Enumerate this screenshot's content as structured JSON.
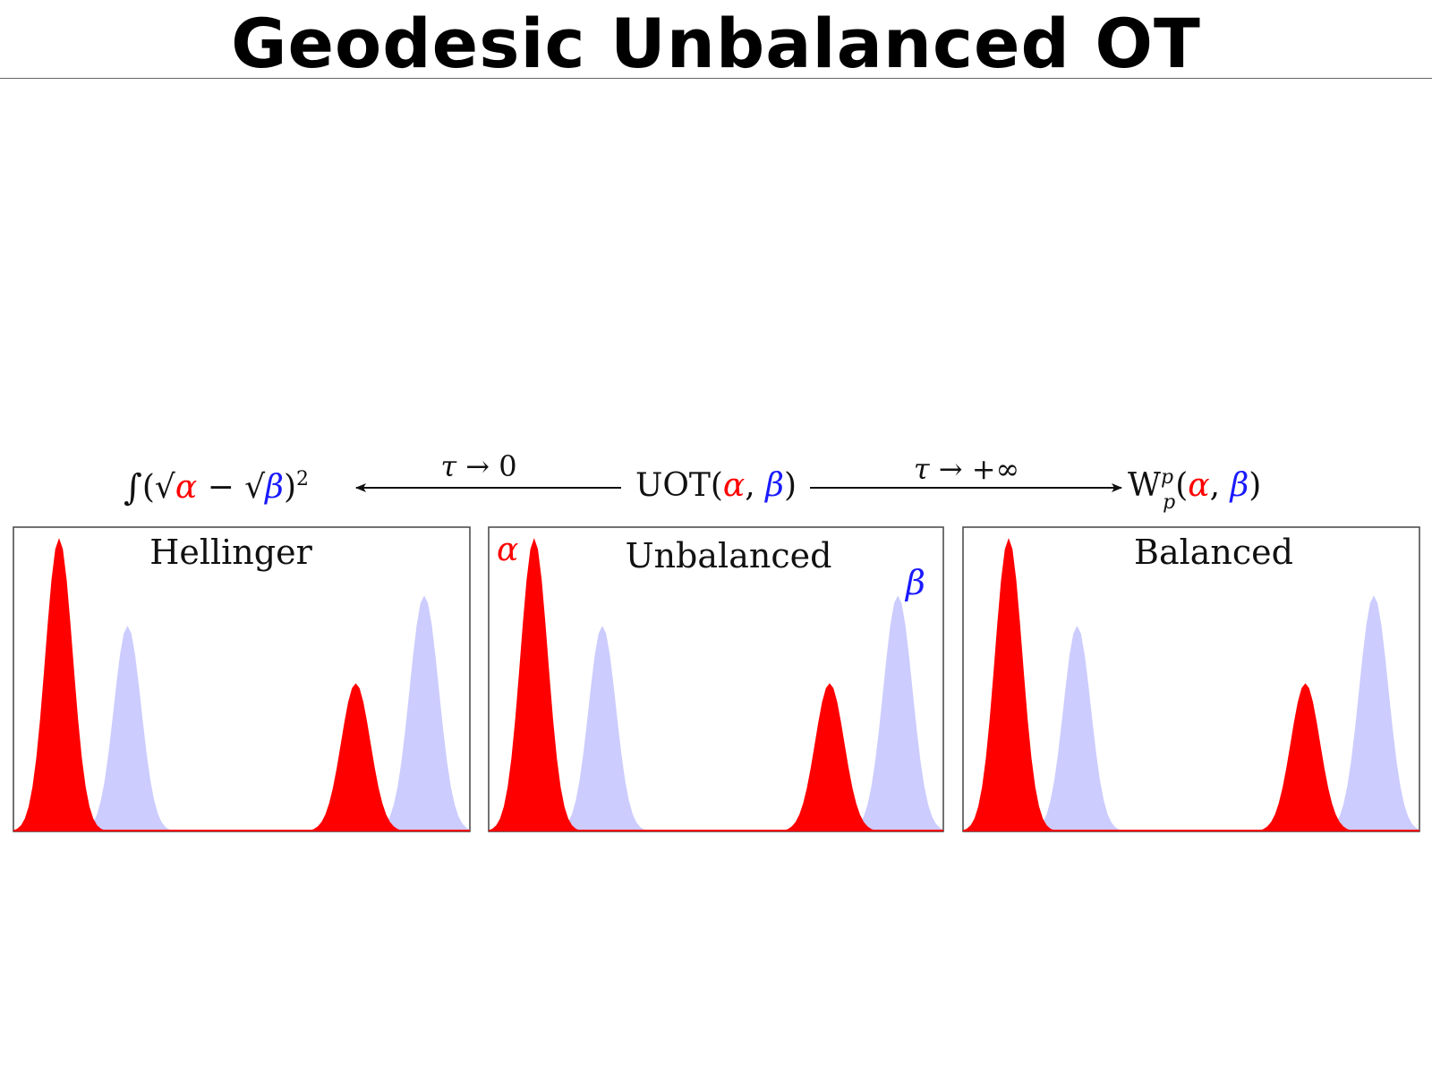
{
  "slide": {
    "title": "Geodesic Unbalanced OT"
  },
  "colors": {
    "alpha": "#ff0000",
    "beta": "#ccccff",
    "beta_label": "#1a1aff",
    "frame": "#444444",
    "text": "#111111"
  },
  "formula_left": {
    "integral": "∫",
    "open": "(",
    "sqrt": "√",
    "alpha": "α",
    "minus": " − ",
    "beta": "β",
    "close": ")",
    "exponent": "2"
  },
  "formula_center": {
    "name": "UOT",
    "open": "(",
    "alpha": "α",
    "comma": ", ",
    "beta": "β",
    "close": ")"
  },
  "formula_right": {
    "name": "W",
    "sup": "p",
    "sub": "p",
    "open": "(",
    "alpha": "α",
    "comma": ", ",
    "beta": "β",
    "close": ")"
  },
  "arrow_left": {
    "tau": "τ",
    "arrow": " → ",
    "limit": "0"
  },
  "arrow_right": {
    "tau": "τ",
    "arrow": " → ",
    "limit": "+∞"
  },
  "panels": [
    {
      "label": "Hellinger"
    },
    {
      "label": "Unbalanced",
      "alpha_label": "α",
      "beta_label": "β"
    },
    {
      "label": "Balanced"
    }
  ],
  "peaks": {
    "alpha": [
      {
        "center": 0.1,
        "width": 0.03,
        "height": 0.97
      },
      {
        "center": 0.75,
        "width": 0.032,
        "height": 0.49
      }
    ],
    "beta": [
      {
        "center": 0.25,
        "width": 0.03,
        "height": 0.68
      },
      {
        "center": 0.9,
        "width": 0.032,
        "height": 0.78
      }
    ]
  }
}
